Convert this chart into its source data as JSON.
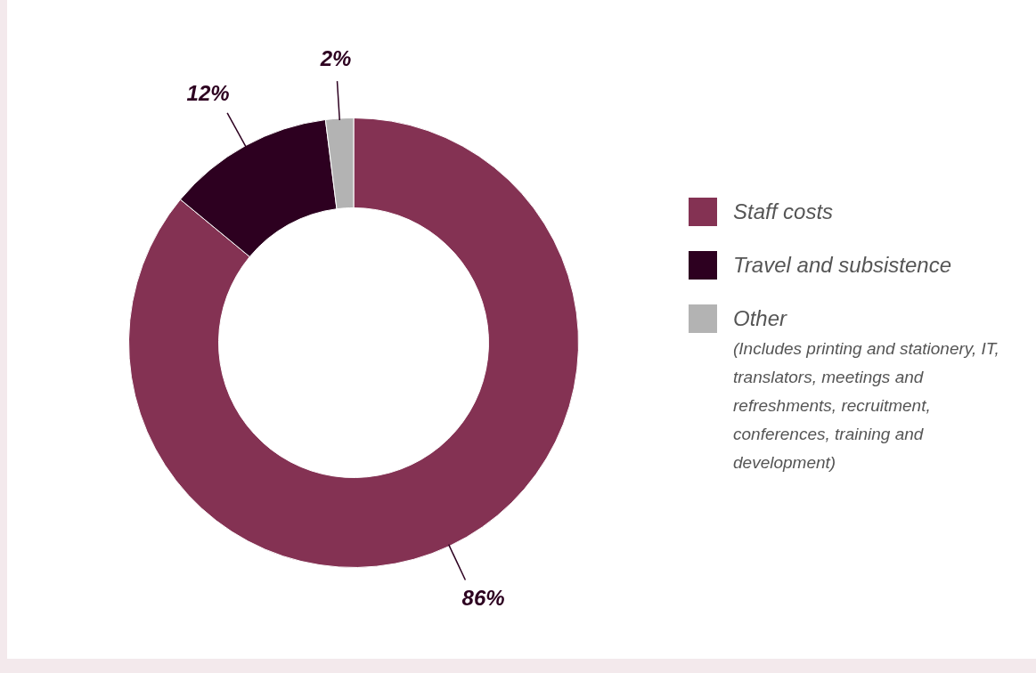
{
  "chart_data": {
    "type": "donut",
    "categories": [
      "Staff costs",
      "Travel and subsistence",
      "Other"
    ],
    "values": [
      86,
      12,
      2
    ],
    "colors": [
      "#843253",
      "#2d0020",
      "#b3b3b3"
    ],
    "value_labels": [
      "86%",
      "12%",
      "2%"
    ],
    "legend": "right",
    "annotations": [
      "(Includes printing and stationery, IT, translators, meetings and refreshments, recruitment, conferences, training and development)"
    ]
  }
}
